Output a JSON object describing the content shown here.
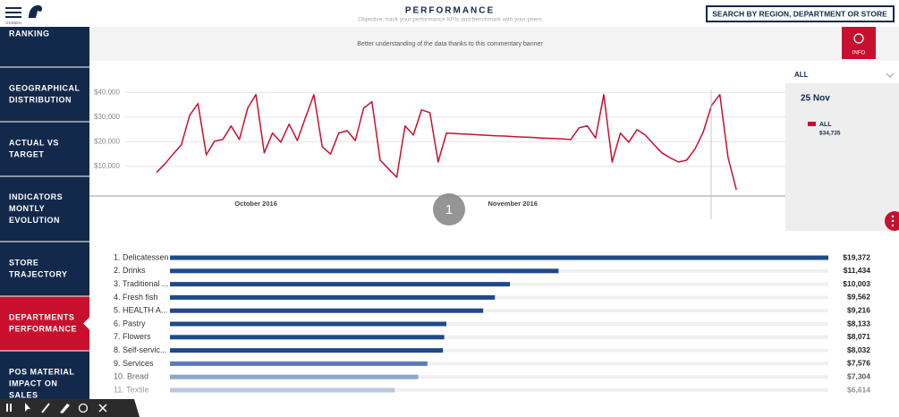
{
  "header": {
    "logo_text": "STORIES",
    "title": "PERFORMANCE",
    "subtitle": "Objective: track your performance KPIs and benchmark with your peers",
    "search": "SEARCH BY REGION, DEPARTMENT OR STORE"
  },
  "sidebar": {
    "items": [
      [
        "RANKING"
      ],
      [
        "GEOGRAPHICAL",
        "DISTRIBUTION"
      ],
      [
        "ACTUAL VS",
        "TARGET"
      ],
      [
        "INDICATORS",
        "MONTLY",
        "EVOLUTION"
      ],
      [
        "STORE",
        "TRAJECTORY"
      ],
      [
        "DEPARTMENTS",
        "PERFORMANCE"
      ],
      [
        "POS MATERIAL",
        "IMPACT ON",
        "SALES"
      ]
    ],
    "active": 5
  },
  "banner": {
    "text": "Better understanding of the data thanks to this commentary banner",
    "badge": "INFO"
  },
  "filter": {
    "label": "ALL"
  },
  "tooltip": {
    "date": "25 Nov",
    "value": "$34,735"
  },
  "step_badge": "1",
  "chart_data": [
    {
      "type": "line",
      "categories": [
        null,
        null,
        null,
        null,
        null,
        null,
        null,
        null,
        null,
        null,
        null,
        null,
        "October 2016",
        null,
        null,
        null,
        null,
        null,
        null,
        null,
        null,
        null,
        null,
        null,
        null,
        null,
        null,
        null,
        null,
        null,
        null,
        null,
        null,
        null,
        null,
        null,
        null,
        null,
        null,
        null,
        null,
        null,
        null,
        "November 2016",
        null,
        null,
        null,
        null,
        null,
        null,
        null,
        null,
        null,
        null,
        null,
        null,
        null,
        null,
        null,
        null,
        null,
        null,
        null,
        null,
        null,
        null,
        null,
        null,
        null,
        null,
        null
      ],
      "series": [
        {
          "name": "ALL",
          "color": "#c8102e",
          "values": [
            7500,
            11000,
            15000,
            18800,
            30700,
            35500,
            14700,
            20200,
            20900,
            26400,
            20900,
            33600,
            39100,
            15500,
            23500,
            19800,
            27100,
            20500,
            30000,
            39100,
            18000,
            15000,
            23500,
            24500,
            20500,
            33600,
            36200,
            12500,
            9000,
            5600,
            26400,
            22700,
            32900,
            31800,
            11800,
            23500,
            23300,
            23100,
            23000,
            22800,
            22600,
            22400,
            22300,
            22100,
            21900,
            21800,
            21600,
            21400,
            21300,
            21100,
            20900,
            25600,
            26400,
            21500,
            39100,
            11800,
            23500,
            19800,
            24900,
            22700,
            19000,
            15500,
            13500,
            11800,
            12500,
            17000,
            24000,
            34735,
            39100,
            13600,
            500
          ]
        }
      ],
      "ylim": [
        -2000,
        43000
      ],
      "yticks": [
        {
          "value": 10000,
          "label": "$10,000"
        },
        {
          "value": 20000,
          "label": "$20,000"
        },
        {
          "value": 30000,
          "label": "$30,000"
        },
        {
          "value": 40000,
          "label": "$40,000"
        }
      ],
      "grid": true
    },
    {
      "type": "hbar",
      "categories": [
        "1. Delicatessen",
        "2. Drinks",
        "3. Traditional ...",
        "4. Fresh fish",
        "5. HEALTH A...",
        "6. Pastry",
        "7. Flowers",
        "8. Self-servic...",
        "9. Services",
        "10. Bread",
        "11. Textile"
      ],
      "values": [
        19372,
        11434,
        10003,
        9562,
        9216,
        8133,
        8071,
        8032,
        7576,
        7304,
        6614
      ],
      "value_labels": [
        "$19,372",
        "$11,434",
        "$10,003",
        "$9,562",
        "$9,216",
        "$8,133",
        "$8,071",
        "$8,032",
        "$7,576",
        "$7,304",
        "$6,614"
      ],
      "colors": [
        "#1f4a8a",
        "#1f4a8a",
        "#1f4a8a",
        "#1f4a8a",
        "#1f4a8a",
        "#1f4a8a",
        "#1f4a8a",
        "#1f4a8a",
        "#5a7db3",
        "#8ea6ca",
        "#b9c8de"
      ]
    }
  ]
}
